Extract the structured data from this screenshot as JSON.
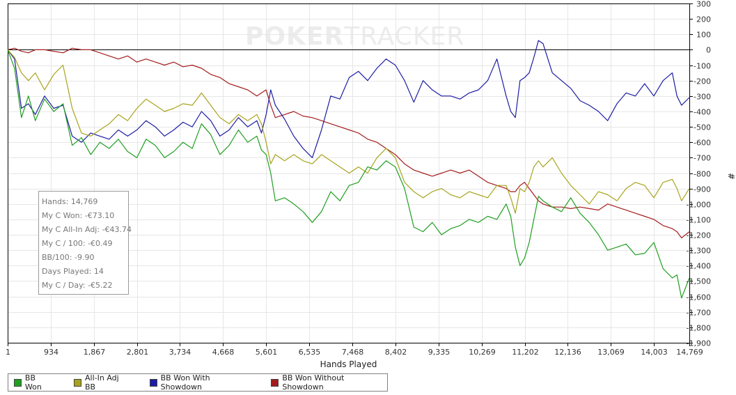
{
  "watermark": {
    "bold_part": "POKER",
    "thin_part": "TRACKER"
  },
  "stats": [
    "Hands: 14,769",
    "My C Won: -€73.10",
    "My C All-In Adj: -€43.74",
    "My C / 100: -€0.49",
    "BB/100: -9.90",
    "Days Played: 14",
    "My C / Day: -€5.22"
  ],
  "legend": [
    {
      "label": "BB Won",
      "color": "#1f9e1f"
    },
    {
      "label": "All-In Adj BB",
      "color": "#a8a31c"
    },
    {
      "label": "BB Won With Showdown",
      "color": "#1c1ca4"
    },
    {
      "label": "BB Won Without Showdown",
      "color": "#a41c1c"
    }
  ],
  "chart_data": {
    "type": "line",
    "xlabel": "Hands Played",
    "ylabel": "#",
    "xlim": [
      1,
      14769
    ],
    "ylim": [
      -1900,
      300
    ],
    "x_ticks": [
      1,
      934,
      1867,
      2801,
      3734,
      4668,
      5601,
      6535,
      7468,
      8402,
      9335,
      10269,
      11202,
      12136,
      13069,
      14003,
      14769
    ],
    "x_tick_labels": [
      "1",
      "934",
      "1,867",
      "2,801",
      "3,734",
      "4,668",
      "5,601",
      "6,535",
      "7,468",
      "8,402",
      "9,335",
      "10,269",
      "11,202",
      "12,136",
      "13,069",
      "14,003",
      "14,769"
    ],
    "y_ticks": [
      300,
      200,
      100,
      0,
      -100,
      -200,
      -300,
      -400,
      -500,
      -600,
      -700,
      -800,
      -900,
      -1000,
      -1100,
      -1200,
      -1300,
      -1400,
      -1500,
      -1600,
      -1700,
      -1800,
      -1900
    ],
    "y_tick_labels": [
      "300",
      "200",
      "100",
      "0",
      "-100",
      "-200",
      "-300",
      "-400",
      "-500",
      "-600",
      "-700",
      "-800",
      "-900",
      "-1,000",
      "-1,100",
      "-1,200",
      "-1,300",
      "-1,400",
      "-1,500",
      "-1,600",
      "-1,700",
      "-1,800",
      "-1,900"
    ],
    "grid": true,
    "zero_line": true,
    "series": [
      {
        "name": "BB Won",
        "color": "#1f9e1f",
        "x": [
          1,
          150,
          300,
          450,
          600,
          800,
          1000,
          1200,
          1400,
          1600,
          1800,
          2000,
          2200,
          2400,
          2600,
          2800,
          3000,
          3200,
          3400,
          3600,
          3800,
          4000,
          4200,
          4400,
          4600,
          4800,
          5000,
          5200,
          5400,
          5500,
          5600,
          5700,
          5800,
          6000,
          6200,
          6400,
          6600,
          6800,
          7000,
          7200,
          7400,
          7600,
          7800,
          8000,
          8200,
          8400,
          8600,
          8800,
          9000,
          9200,
          9400,
          9600,
          9800,
          10000,
          10200,
          10400,
          10600,
          10800,
          10900,
          11000,
          11100,
          11200,
          11300,
          11400,
          11500,
          11600,
          11800,
          12000,
          12200,
          12400,
          12600,
          12800,
          13000,
          13200,
          13400,
          13600,
          13800,
          14000,
          14200,
          14400,
          14500,
          14600,
          14769
        ],
        "y": [
          0,
          -120,
          -440,
          -300,
          -460,
          -320,
          -400,
          -350,
          -620,
          -570,
          -680,
          -600,
          -640,
          -580,
          -660,
          -700,
          -580,
          -620,
          -700,
          -660,
          -600,
          -640,
          -480,
          -550,
          -680,
          -620,
          -520,
          -600,
          -560,
          -650,
          -680,
          -800,
          -980,
          -960,
          -1000,
          -1050,
          -1120,
          -1050,
          -920,
          -980,
          -880,
          -860,
          -760,
          -780,
          -720,
          -760,
          -900,
          -1150,
          -1180,
          -1120,
          -1200,
          -1160,
          -1140,
          -1100,
          -1120,
          -1080,
          -1100,
          -1000,
          -1080,
          -1280,
          -1400,
          -1350,
          -1250,
          -1100,
          -950,
          -980,
          -1020,
          -1050,
          -960,
          -1060,
          -1120,
          -1200,
          -1300,
          -1280,
          -1260,
          -1330,
          -1320,
          -1250,
          -1420,
          -1480,
          -1460,
          -1610,
          -1480
        ]
      },
      {
        "name": "All-In Adj BB",
        "color": "#a8a31c",
        "x": [
          1,
          150,
          300,
          450,
          600,
          800,
          1000,
          1200,
          1400,
          1600,
          1800,
          2000,
          2200,
          2400,
          2600,
          2800,
          3000,
          3200,
          3400,
          3600,
          3800,
          4000,
          4200,
          4400,
          4600,
          4800,
          5000,
          5200,
          5400,
          5500,
          5600,
          5700,
          5800,
          6000,
          6200,
          6400,
          6600,
          6800,
          7000,
          7200,
          7400,
          7600,
          7800,
          8000,
          8200,
          8400,
          8600,
          8800,
          9000,
          9200,
          9400,
          9600,
          9800,
          10000,
          10200,
          10400,
          10600,
          10800,
          10900,
          11000,
          11100,
          11200,
          11300,
          11400,
          11500,
          11600,
          11800,
          12000,
          12200,
          12400,
          12600,
          12800,
          13000,
          13200,
          13400,
          13600,
          13800,
          14000,
          14200,
          14400,
          14500,
          14600,
          14769
        ],
        "y": [
          0,
          -50,
          -150,
          -200,
          -150,
          -260,
          -160,
          -100,
          -380,
          -540,
          -560,
          -520,
          -480,
          -420,
          -460,
          -380,
          -320,
          -360,
          -400,
          -380,
          -350,
          -360,
          -280,
          -360,
          -440,
          -480,
          -420,
          -460,
          -420,
          -480,
          -600,
          -740,
          -680,
          -720,
          -680,
          -720,
          -740,
          -680,
          -720,
          -760,
          -800,
          -760,
          -800,
          -700,
          -640,
          -700,
          -860,
          -920,
          -960,
          -920,
          -900,
          -940,
          -960,
          -920,
          -940,
          -960,
          -880,
          -880,
          -960,
          -1060,
          -900,
          -920,
          -860,
          -760,
          -720,
          -760,
          -700,
          -800,
          -880,
          -940,
          -1000,
          -920,
          -940,
          -980,
          -900,
          -860,
          -880,
          -960,
          -860,
          -840,
          -900,
          -980,
          -900
        ]
      },
      {
        "name": "BB Won With Showdown",
        "color": "#1c1ca4",
        "x": [
          1,
          150,
          300,
          450,
          600,
          800,
          1000,
          1200,
          1400,
          1600,
          1800,
          2000,
          2200,
          2400,
          2600,
          2800,
          3000,
          3200,
          3400,
          3600,
          3800,
          4000,
          4200,
          4400,
          4600,
          4800,
          5000,
          5200,
          5400,
          5500,
          5600,
          5700,
          5800,
          6000,
          6200,
          6400,
          6600,
          6800,
          7000,
          7200,
          7400,
          7600,
          7800,
          8000,
          8200,
          8400,
          8600,
          8800,
          9000,
          9200,
          9400,
          9600,
          9800,
          10000,
          10200,
          10400,
          10600,
          10800,
          10900,
          11000,
          11100,
          11200,
          11300,
          11400,
          11500,
          11600,
          11800,
          12000,
          12200,
          12400,
          12600,
          12800,
          13000,
          13200,
          13400,
          13600,
          13800,
          14000,
          14200,
          14400,
          14500,
          14600,
          14769
        ],
        "y": [
          0,
          -60,
          -380,
          -350,
          -420,
          -300,
          -380,
          -360,
          -560,
          -600,
          -540,
          -560,
          -580,
          -520,
          -560,
          -520,
          -460,
          -500,
          -560,
          -520,
          -470,
          -500,
          -400,
          -460,
          -560,
          -520,
          -440,
          -500,
          -460,
          -540,
          -420,
          -260,
          -360,
          -450,
          -560,
          -640,
          -700,
          -520,
          -300,
          -320,
          -180,
          -140,
          -200,
          -120,
          -60,
          -100,
          -200,
          -340,
          -200,
          -260,
          -300,
          -300,
          -320,
          -280,
          -260,
          -200,
          -60,
          -300,
          -400,
          -440,
          -200,
          -180,
          -150,
          -50,
          60,
          40,
          -150,
          -200,
          -250,
          -330,
          -360,
          -400,
          -460,
          -350,
          -280,
          -300,
          -220,
          -300,
          -200,
          -150,
          -300,
          -360,
          -310
        ]
      },
      {
        "name": "BB Won Without Showdown",
        "color": "#a41c1c",
        "x": [
          1,
          150,
          300,
          450,
          600,
          800,
          1000,
          1200,
          1400,
          1600,
          1800,
          2000,
          2200,
          2400,
          2600,
          2800,
          3000,
          3200,
          3400,
          3600,
          3800,
          4000,
          4200,
          4400,
          4600,
          4800,
          5000,
          5200,
          5400,
          5500,
          5600,
          5700,
          5800,
          6000,
          6200,
          6400,
          6600,
          6800,
          7000,
          7200,
          7400,
          7600,
          7800,
          8000,
          8200,
          8400,
          8600,
          8800,
          9000,
          9200,
          9400,
          9600,
          9800,
          10000,
          10200,
          10400,
          10600,
          10800,
          10900,
          11000,
          11100,
          11200,
          11300,
          11400,
          11500,
          11600,
          11800,
          12000,
          12200,
          12400,
          12600,
          12800,
          13000,
          13200,
          13400,
          13600,
          13800,
          14000,
          14200,
          14400,
          14500,
          14600,
          14769
        ],
        "y": [
          0,
          10,
          -10,
          -20,
          0,
          0,
          -10,
          -20,
          10,
          0,
          0,
          -20,
          -40,
          -60,
          -40,
          -80,
          -60,
          -80,
          -100,
          -80,
          -110,
          -100,
          -120,
          -160,
          -180,
          -220,
          -240,
          -260,
          -300,
          -280,
          -260,
          -360,
          -440,
          -420,
          -400,
          -430,
          -440,
          -460,
          -480,
          -500,
          -520,
          -540,
          -580,
          -600,
          -640,
          -680,
          -740,
          -780,
          -800,
          -820,
          -800,
          -780,
          -800,
          -780,
          -820,
          -860,
          -880,
          -900,
          -920,
          -920,
          -880,
          -860,
          -900,
          -940,
          -980,
          -1000,
          -1020,
          -1020,
          -1030,
          -1020,
          -1030,
          -1040,
          -1000,
          -1020,
          -1040,
          -1060,
          -1080,
          -1100,
          -1140,
          -1160,
          -1180,
          -1220,
          -1180
        ]
      }
    ]
  }
}
